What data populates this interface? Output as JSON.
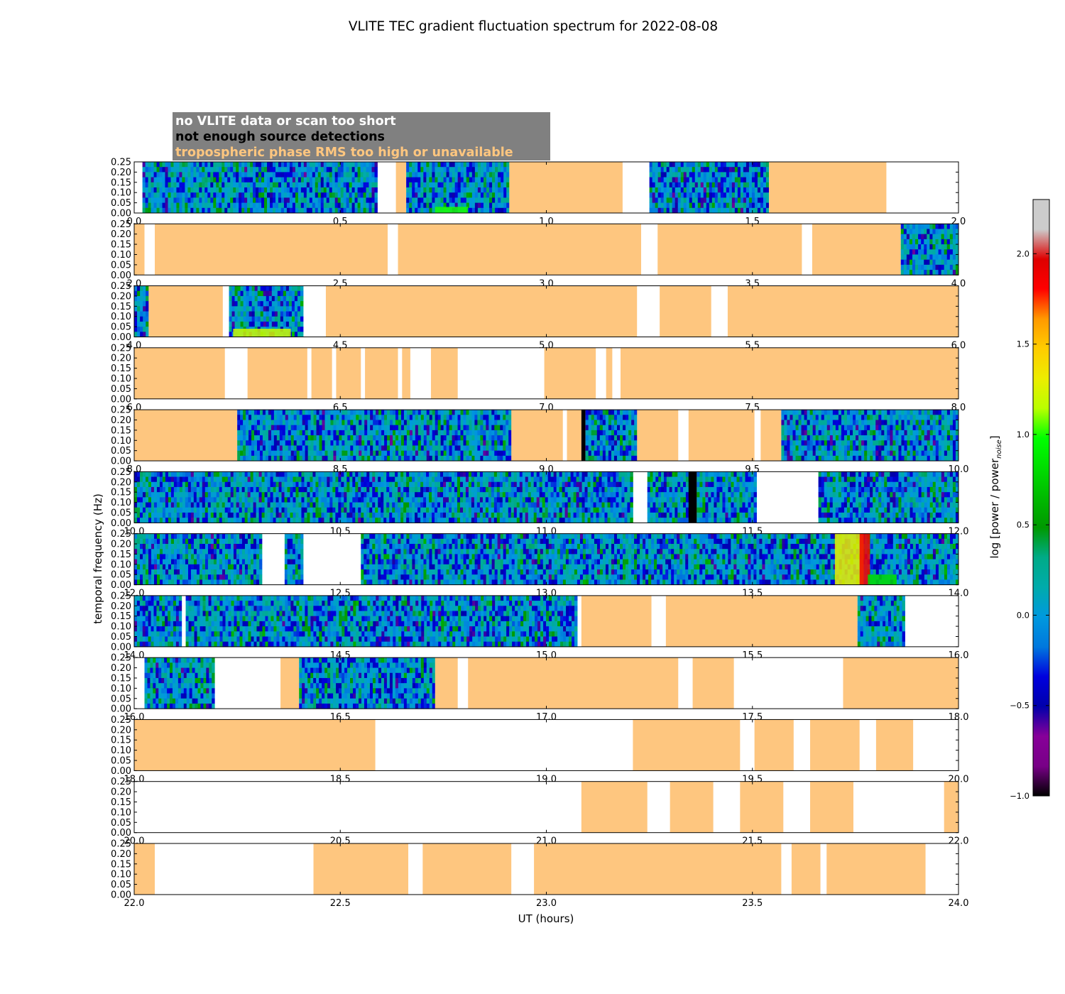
{
  "chart_data": {
    "type": "heatmap",
    "title": "VLITE TEC gradient fluctuation spectrum for 2022-08-08",
    "xlabel": "UT (hours)",
    "ylabel": "temporal frequency (Hz)",
    "ylim": [
      0,
      0.25
    ],
    "y_ticks": [
      "0.00",
      "0.05",
      "0.10",
      "0.15",
      "0.20",
      "0.25"
    ],
    "colorbar": {
      "label": "log [power / power",
      "label_sub": "noise",
      "label_end": "]",
      "range": [
        -1.0,
        2.3
      ],
      "ticks": [
        "−1.0",
        "−0.5",
        "0.0",
        "0.5",
        "1.0",
        "1.5",
        "2.0"
      ],
      "tick_values": [
        -1.0,
        -0.5,
        0.0,
        0.5,
        1.0,
        1.5,
        2.0
      ],
      "colormap": "nipy_spectral"
    },
    "legend": [
      {
        "label": "no VLITE data or scan too short",
        "color": "#ffffff"
      },
      {
        "label": "not enough source detections",
        "color": "#000000"
      },
      {
        "label": "tropospheric phase RMS too high or unavailable",
        "color": "#fec67f"
      }
    ],
    "category_colors": {
      "background": "#ffffff",
      "no_data": "#ffffff",
      "no_detections": "#000000",
      "trop_rms": "#fec67f",
      "legend_box": "#808080"
    },
    "panels": [
      {
        "range": [
          0,
          2
        ],
        "x_ticks": [
          "0.0",
          "0.5",
          "1.0",
          "1.5",
          "2.0"
        ],
        "segments": [
          [
            0.02,
            0.59,
            "spec"
          ],
          [
            0.635,
            0.66,
            "trop"
          ],
          [
            0.66,
            0.91,
            "spec"
          ],
          [
            0.91,
            1.185,
            "trop"
          ],
          [
            1.25,
            1.54,
            "spec"
          ],
          [
            1.54,
            1.825,
            "trop"
          ]
        ],
        "hotspots": [
          [
            0.73,
            0.81,
            0.0,
            0.03,
            1.0
          ]
        ]
      },
      {
        "range": [
          2,
          4
        ],
        "x_ticks": [
          "2.0",
          "2.5",
          "3.0",
          "3.5",
          "4.0"
        ],
        "segments": [
          [
            2.0,
            2.025,
            "trop"
          ],
          [
            2.05,
            2.615,
            "trop"
          ],
          [
            2.64,
            3.23,
            "trop"
          ],
          [
            3.27,
            3.62,
            "trop"
          ],
          [
            3.645,
            3.86,
            "trop"
          ],
          [
            3.86,
            4.0,
            "spec"
          ]
        ],
        "hotspots": []
      },
      {
        "range": [
          4,
          6
        ],
        "x_ticks": [
          "4.0",
          "4.5",
          "5.0",
          "5.5",
          "6.0"
        ],
        "segments": [
          [
            4.0,
            4.035,
            "spec"
          ],
          [
            4.035,
            4.215,
            "trop"
          ],
          [
            4.23,
            4.41,
            "spec"
          ],
          [
            4.465,
            5.22,
            "trop"
          ],
          [
            5.275,
            5.4,
            "trop"
          ],
          [
            5.44,
            6.0,
            "trop"
          ]
        ],
        "hotspots": [
          [
            4.24,
            4.38,
            0.0,
            0.04,
            1.2
          ]
        ]
      },
      {
        "range": [
          6,
          8
        ],
        "x_ticks": [
          "6.0",
          "6.5",
          "7.0",
          "7.5",
          "8.0"
        ],
        "segments": [
          [
            6.0,
            6.22,
            "trop"
          ],
          [
            6.275,
            6.42,
            "trop"
          ],
          [
            6.43,
            6.48,
            "trop"
          ],
          [
            6.49,
            6.55,
            "trop"
          ],
          [
            6.56,
            6.64,
            "trop"
          ],
          [
            6.65,
            6.67,
            "trop"
          ],
          [
            6.72,
            6.785,
            "trop"
          ],
          [
            6.995,
            7.12,
            "trop"
          ],
          [
            7.145,
            7.16,
            "trop"
          ],
          [
            7.18,
            8.0,
            "trop"
          ]
        ],
        "hotspots": []
      },
      {
        "range": [
          8,
          10
        ],
        "x_ticks": [
          "8.0",
          "8.5",
          "9.0",
          "9.5",
          "10.0"
        ],
        "segments": [
          [
            8.0,
            8.25,
            "trop"
          ],
          [
            8.25,
            8.915,
            "spec"
          ],
          [
            8.915,
            9.04,
            "trop"
          ],
          [
            9.05,
            9.085,
            "trop"
          ],
          [
            9.085,
            9.095,
            "nodet"
          ],
          [
            9.095,
            9.22,
            "spec"
          ],
          [
            9.22,
            9.32,
            "trop"
          ],
          [
            9.345,
            9.505,
            "trop"
          ],
          [
            9.52,
            9.57,
            "trop"
          ],
          [
            9.57,
            10.0,
            "spec"
          ]
        ],
        "hotspots": []
      },
      {
        "range": [
          10,
          12
        ],
        "x_ticks": [
          "10.0",
          "10.5",
          "11.0",
          "11.5",
          "12.0"
        ],
        "segments": [
          [
            10.0,
            11.21,
            "spec"
          ],
          [
            11.245,
            11.345,
            "spec"
          ],
          [
            11.345,
            11.365,
            "nodet"
          ],
          [
            11.365,
            11.51,
            "spec"
          ],
          [
            11.66,
            12.0,
            "spec"
          ]
        ],
        "hotspots": []
      },
      {
        "range": [
          12,
          14
        ],
        "x_ticks": [
          "12.0",
          "12.5",
          "13.0",
          "13.5",
          "14.0"
        ],
        "segments": [
          [
            12.0,
            12.31,
            "spec"
          ],
          [
            12.365,
            12.41,
            "spec"
          ],
          [
            12.55,
            14.0,
            "spec"
          ]
        ],
        "hotspots": [
          [
            13.7,
            13.77,
            0.0,
            0.25,
            1.3
          ],
          [
            13.76,
            13.785,
            0.0,
            0.25,
            1.85
          ],
          [
            13.78,
            13.85,
            0.0,
            0.05,
            0.8
          ]
        ]
      },
      {
        "range": [
          14,
          16
        ],
        "x_ticks": [
          "14.0",
          "14.5",
          "15.0",
          "15.5",
          "16.0"
        ],
        "segments": [
          [
            14.0,
            14.115,
            "spec"
          ],
          [
            14.125,
            15.075,
            "spec"
          ],
          [
            15.085,
            15.255,
            "trop"
          ],
          [
            15.29,
            15.755,
            "trop"
          ],
          [
            15.755,
            15.87,
            "spec"
          ]
        ],
        "hotspots": []
      },
      {
        "range": [
          16,
          18
        ],
        "x_ticks": [
          "16.0",
          "16.5",
          "17.0",
          "17.5",
          "18.0"
        ],
        "segments": [
          [
            16.025,
            16.195,
            "spec"
          ],
          [
            16.355,
            16.4,
            "trop"
          ],
          [
            16.4,
            16.73,
            "spec"
          ],
          [
            16.73,
            16.785,
            "trop"
          ],
          [
            16.81,
            17.32,
            "trop"
          ],
          [
            17.355,
            17.455,
            "trop"
          ],
          [
            17.72,
            18.0,
            "trop"
          ]
        ],
        "hotspots": []
      },
      {
        "range": [
          18,
          20
        ],
        "x_ticks": [
          "18.0",
          "18.5",
          "19.0",
          "19.5",
          "20.0"
        ],
        "segments": [
          [
            18.0,
            18.585,
            "trop"
          ],
          [
            19.21,
            19.47,
            "trop"
          ],
          [
            19.505,
            19.6,
            "trop"
          ],
          [
            19.64,
            19.76,
            "trop"
          ],
          [
            19.8,
            19.89,
            "trop"
          ]
        ],
        "hotspots": []
      },
      {
        "range": [
          20,
          22
        ],
        "x_ticks": [
          "20.0",
          "20.5",
          "21.0",
          "21.5",
          "22.0"
        ],
        "segments": [
          [
            21.085,
            21.245,
            "trop"
          ],
          [
            21.3,
            21.405,
            "trop"
          ],
          [
            21.47,
            21.575,
            "trop"
          ],
          [
            21.64,
            21.745,
            "trop"
          ],
          [
            21.965,
            22.0,
            "trop"
          ]
        ],
        "hotspots": []
      },
      {
        "range": [
          22,
          24
        ],
        "x_ticks": [
          "22.0",
          "22.5",
          "23.0",
          "23.5",
          "24.0"
        ],
        "segments": [
          [
            22.0,
            22.05,
            "trop"
          ],
          [
            22.435,
            22.665,
            "trop"
          ],
          [
            22.7,
            22.915,
            "trop"
          ],
          [
            22.97,
            23.57,
            "trop"
          ],
          [
            23.595,
            23.665,
            "trop"
          ],
          [
            23.68,
            23.92,
            "trop"
          ]
        ],
        "hotspots": []
      }
    ]
  }
}
